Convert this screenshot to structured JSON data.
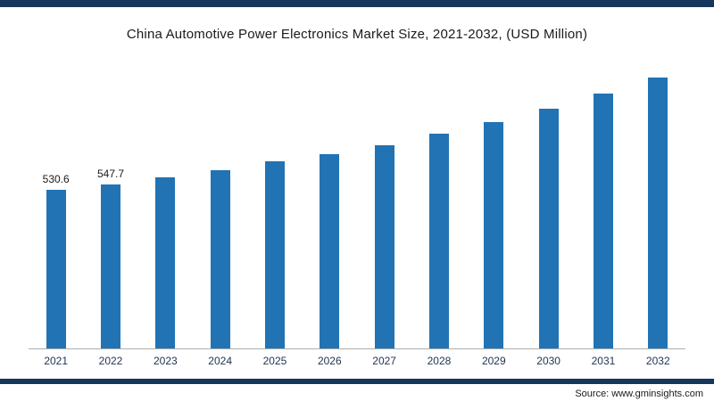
{
  "page": {
    "title": "China Automotive Power Electronics Market Size, 2021-2032, (USD Million)"
  },
  "colors": {
    "bar_fill": "#2173b4",
    "frame_strip": "#16365c",
    "axis_line": "#adadad",
    "tick_text": "#1f3250"
  },
  "chart_data": {
    "type": "bar",
    "title": "China Automotive Power Electronics Market Size, 2021-2032, (USD Million)",
    "xlabel": "",
    "ylabel": "",
    "ylim": [
      0,
      1000
    ],
    "grid": false,
    "legend": false,
    "categories": [
      "2021",
      "2022",
      "2023",
      "2024",
      "2025",
      "2026",
      "2027",
      "2028",
      "2029",
      "2030",
      "2031",
      "2032"
    ],
    "values": [
      530.6,
      547.7,
      570,
      595,
      625,
      648,
      680,
      716,
      755,
      800,
      850,
      905
    ],
    "data_labels": [
      "530.6",
      "547.7",
      "",
      "",
      "",
      "",
      "",
      "",
      "",
      "",
      "",
      ""
    ]
  },
  "footer": {
    "source_label": "Source: www.gminsights.com"
  }
}
